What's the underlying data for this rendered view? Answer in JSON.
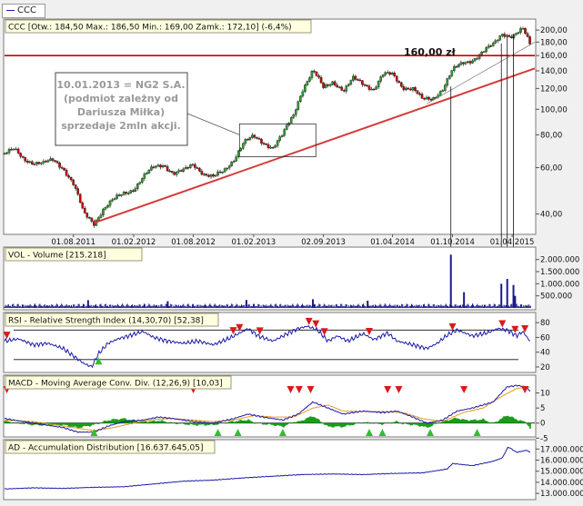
{
  "legend_tab": {
    "label": "CCC"
  },
  "colors": {
    "price_line": "#cc0000",
    "trend_line": "#d63a3a",
    "volume_bar": "#1a1a8c",
    "indicator_line": "#1a1aa6",
    "macd_signal": "#e39a25",
    "macd_hist": "#1a9c1a",
    "buy_marker": "#2fbf2f",
    "sell_marker": "#d91a1a",
    "panel_title_bg": "#ffffe0",
    "chart_bg": "#ffffff"
  },
  "chart_data": [
    {
      "type": "candlestick",
      "title": "CCC [Otw.: 184,50  Max.: 186,50  Min.: 169,00  Zamk.: 172,10] (-6,4%)",
      "scale": "log",
      "ylim": [
        34,
        215
      ],
      "yticks": [
        {
          "value": 200,
          "label": "200,00"
        },
        {
          "value": 180,
          "label": "180,00"
        },
        {
          "value": 160,
          "label": "160,00"
        },
        {
          "value": 140,
          "label": "140,00"
        },
        {
          "value": 120,
          "label": "120,00"
        },
        {
          "value": 100,
          "label": "100,00"
        },
        {
          "value": 80,
          "label": "80,00"
        },
        {
          "value": 60,
          "label": "60,00"
        },
        {
          "value": 40,
          "label": "40,00"
        }
      ],
      "xticks": [
        "01.08.2011",
        "01.02.2012",
        "01.08.2012",
        "01.02.2013",
        "02.09.2013",
        "01.04.2014",
        "01.10.2014",
        "01.04.2015"
      ],
      "xtick_dates": [
        "2011-08-01",
        "2012-02-01",
        "2012-08-01",
        "2013-02-01",
        "2013-09-02",
        "2014-04-01",
        "2014-10-01",
        "2015-04-01"
      ],
      "close_series": [
        [
          "2011-01-03",
          68
        ],
        [
          "2011-02-01",
          70
        ],
        [
          "2011-03-01",
          65
        ],
        [
          "2011-04-01",
          63
        ],
        [
          "2011-05-02",
          62
        ],
        [
          "2011-06-01",
          64
        ],
        [
          "2011-07-01",
          60
        ],
        [
          "2011-08-01",
          52
        ],
        [
          "2011-09-01",
          40
        ],
        [
          "2011-10-03",
          37
        ],
        [
          "2011-11-01",
          42
        ],
        [
          "2011-12-01",
          45
        ],
        [
          "2012-01-02",
          48
        ],
        [
          "2012-02-01",
          50
        ],
        [
          "2012-03-01",
          55
        ],
        [
          "2012-04-02",
          60
        ],
        [
          "2012-05-02",
          62
        ],
        [
          "2012-06-01",
          57
        ],
        [
          "2012-07-02",
          58
        ],
        [
          "2012-08-01",
          62
        ],
        [
          "2012-09-03",
          57
        ],
        [
          "2012-10-01",
          55
        ],
        [
          "2012-11-02",
          58
        ],
        [
          "2012-12-03",
          65
        ],
        [
          "2013-01-02",
          75
        ],
        [
          "2013-02-01",
          78
        ],
        [
          "2013-03-01",
          75
        ],
        [
          "2013-04-01",
          72
        ],
        [
          "2013-05-02",
          80
        ],
        [
          "2013-06-03",
          95
        ],
        [
          "2013-07-01",
          120
        ],
        [
          "2013-08-01",
          140
        ],
        [
          "2013-09-02",
          120
        ],
        [
          "2013-10-01",
          128
        ],
        [
          "2013-11-04",
          118
        ],
        [
          "2013-12-02",
          130
        ],
        [
          "2014-01-02",
          125
        ],
        [
          "2014-02-03",
          120
        ],
        [
          "2014-03-03",
          135
        ],
        [
          "2014-04-01",
          135
        ],
        [
          "2014-05-02",
          122
        ],
        [
          "2014-06-02",
          120
        ],
        [
          "2014-07-01",
          108
        ],
        [
          "2014-08-01",
          110
        ],
        [
          "2014-09-01",
          120
        ],
        [
          "2014-10-01",
          140
        ],
        [
          "2014-11-03",
          150
        ],
        [
          "2014-12-01",
          155
        ],
        [
          "2015-01-02",
          165
        ],
        [
          "2015-02-02",
          175
        ],
        [
          "2015-03-02",
          195
        ],
        [
          "2015-04-01",
          190
        ],
        [
          "2015-05-04",
          200
        ],
        [
          "2015-05-29",
          172.1
        ]
      ],
      "annotations": {
        "level_label": "160,00 zł",
        "note": "10.01.2013 = NG2 S.A. (podmiot zależny od Dariusza Miłka) sprzedaje 2mln akcji."
      }
    },
    {
      "type": "bar",
      "title": "VOL - Volume [215.218]",
      "ylim": [
        0,
        2400000
      ],
      "yticks": [
        {
          "value": 2000000,
          "label": "2.000.000"
        },
        {
          "value": 1500000,
          "label": "1.500.000"
        },
        {
          "value": 1000000,
          "label": "1.000.000"
        },
        {
          "value": 500000,
          "label": "500.000"
        }
      ],
      "baseline": 120000,
      "spikes": [
        [
          "2011-09-15",
          320000
        ],
        [
          "2012-05-15",
          280000
        ],
        [
          "2013-01-10",
          330000
        ],
        [
          "2013-08-01",
          360000
        ],
        [
          "2014-01-15",
          300000
        ],
        [
          "2014-09-26",
          2200000
        ],
        [
          "2014-11-05",
          650000
        ],
        [
          "2015-02-27",
          1000000
        ],
        [
          "2015-03-17",
          1200000
        ],
        [
          "2015-04-05",
          950000
        ],
        [
          "2015-04-10",
          500000
        ]
      ]
    },
    {
      "type": "line",
      "title": "RSI - Relative Strength Index (14,30,70) [52,38]",
      "ylim": [
        15,
        90
      ],
      "yticks": [
        {
          "value": 80,
          "label": "80"
        },
        {
          "value": 60,
          "label": "60"
        },
        {
          "value": 40,
          "label": "40"
        },
        {
          "value": 20,
          "label": "20"
        }
      ],
      "levels": [
        70,
        30
      ],
      "points": [
        [
          "2011-01-03",
          55
        ],
        [
          "2011-02-15",
          58
        ],
        [
          "2011-04-01",
          50
        ],
        [
          "2011-05-16",
          52
        ],
        [
          "2011-07-01",
          45
        ],
        [
          "2011-08-01",
          35
        ],
        [
          "2011-09-01",
          25
        ],
        [
          "2011-09-26",
          20
        ],
        [
          "2011-10-17",
          38
        ],
        [
          "2011-11-15",
          52
        ],
        [
          "2011-12-15",
          58
        ],
        [
          "2012-01-16",
          62
        ],
        [
          "2012-03-01",
          68
        ],
        [
          "2012-04-02",
          60
        ],
        [
          "2012-05-15",
          55
        ],
        [
          "2012-07-02",
          52
        ],
        [
          "2012-08-15",
          55
        ],
        [
          "2012-10-01",
          50
        ],
        [
          "2012-11-15",
          58
        ],
        [
          "2012-12-17",
          65
        ],
        [
          "2013-01-15",
          72
        ],
        [
          "2013-02-15",
          62
        ],
        [
          "2013-04-01",
          55
        ],
        [
          "2013-05-15",
          65
        ],
        [
          "2013-06-17",
          72
        ],
        [
          "2013-07-15",
          75
        ],
        [
          "2013-08-15",
          70
        ],
        [
          "2013-09-16",
          55
        ],
        [
          "2013-10-15",
          62
        ],
        [
          "2013-11-15",
          55
        ],
        [
          "2014-01-02",
          65
        ],
        [
          "2014-02-03",
          57
        ],
        [
          "2014-03-17",
          66
        ],
        [
          "2014-04-15",
          55
        ],
        [
          "2014-06-02",
          50
        ],
        [
          "2014-07-15",
          45
        ],
        [
          "2014-08-15",
          52
        ],
        [
          "2014-09-15",
          63
        ],
        [
          "2014-10-15",
          70
        ],
        [
          "2014-12-01",
          62
        ],
        [
          "2015-01-15",
          66
        ],
        [
          "2015-02-16",
          72
        ],
        [
          "2015-03-16",
          70
        ],
        [
          "2015-04-15",
          62
        ],
        [
          "2015-05-04",
          68
        ],
        [
          "2015-05-29",
          52.38
        ]
      ],
      "sell_signals": [
        "2011-01-10",
        "2012-12-01",
        "2012-12-20",
        "2013-02-20",
        "2013-07-20",
        "2013-08-10",
        "2013-09-05",
        "2014-01-20",
        "2014-10-01",
        "2015-03-02",
        "2015-04-10",
        "2015-05-10"
      ],
      "buy_signals": [
        "2011-10-17"
      ]
    },
    {
      "type": "line",
      "title": "MACD - Moving Average Conv. Div. (12,26,9) [10,03]",
      "ylim": [
        -4,
        15
      ],
      "yticks": [
        {
          "value": 10,
          "label": "10"
        },
        {
          "value": 5,
          "label": "5"
        },
        {
          "value": 0,
          "label": "0"
        },
        {
          "value": -5,
          "label": "-5"
        }
      ],
      "series": [
        {
          "name": "MACD",
          "points": [
            [
              "2011-01-03",
              1.5
            ],
            [
              "2011-03-01",
              0.5
            ],
            [
              "2011-05-02",
              -0.5
            ],
            [
              "2011-07-01",
              -1.5
            ],
            [
              "2011-08-15",
              -3
            ],
            [
              "2011-10-03",
              -3
            ],
            [
              "2011-11-15",
              -1
            ],
            [
              "2012-01-02",
              0.5
            ],
            [
              "2012-03-01",
              1
            ],
            [
              "2012-04-16",
              2
            ],
            [
              "2012-06-01",
              1.5
            ],
            [
              "2012-08-01",
              0.5
            ],
            [
              "2012-10-01",
              0
            ],
            [
              "2012-12-03",
              1.5
            ],
            [
              "2013-01-15",
              3
            ],
            [
              "2013-03-01",
              2
            ],
            [
              "2013-05-02",
              1
            ],
            [
              "2013-06-17",
              3
            ],
            [
              "2013-08-01",
              7
            ],
            [
              "2013-09-16",
              5
            ],
            [
              "2013-11-01",
              3
            ],
            [
              "2014-01-02",
              4
            ],
            [
              "2014-03-03",
              3.5
            ],
            [
              "2014-04-15",
              4
            ],
            [
              "2014-06-02",
              2
            ],
            [
              "2014-07-15",
              0
            ],
            [
              "2014-09-01",
              1
            ],
            [
              "2014-10-15",
              4
            ],
            [
              "2014-12-01",
              5
            ],
            [
              "2015-02-02",
              7
            ],
            [
              "2015-03-16",
              12
            ],
            [
              "2015-04-15",
              12.5
            ],
            [
              "2015-05-15",
              12
            ],
            [
              "2015-05-29",
              10.03
            ]
          ]
        },
        {
          "name": "Signal",
          "points": [
            [
              "2011-01-03",
              1
            ],
            [
              "2011-04-01",
              0.5
            ],
            [
              "2011-06-01",
              -0.5
            ],
            [
              "2011-08-01",
              -1.5
            ],
            [
              "2011-10-03",
              -2.5
            ],
            [
              "2011-12-01",
              -1.5
            ],
            [
              "2012-02-01",
              0
            ],
            [
              "2012-04-02",
              1.2
            ],
            [
              "2012-06-01",
              1.5
            ],
            [
              "2012-08-01",
              1
            ],
            [
              "2012-10-01",
              0.5
            ],
            [
              "2012-12-03",
              1
            ],
            [
              "2013-02-01",
              2.5
            ],
            [
              "2013-04-01",
              2
            ],
            [
              "2013-06-03",
              2
            ],
            [
              "2013-08-01",
              5
            ],
            [
              "2013-09-16",
              6
            ],
            [
              "2013-11-01",
              4
            ],
            [
              "2014-01-02",
              3.8
            ],
            [
              "2014-03-03",
              3.8
            ],
            [
              "2014-05-02",
              3.5
            ],
            [
              "2014-07-01",
              1.5
            ],
            [
              "2014-09-01",
              0.5
            ],
            [
              "2014-11-03",
              3.5
            ],
            [
              "2015-01-02",
              5
            ],
            [
              "2015-03-02",
              9
            ],
            [
              "2015-04-15",
              11.5
            ],
            [
              "2015-05-29",
              12
            ]
          ]
        }
      ],
      "sell_signals": [
        "2011-01-10",
        "2012-08-01",
        "2013-05-25",
        "2013-06-20",
        "2013-07-25",
        "2014-03-17",
        "2014-04-20",
        "2014-11-05",
        "2015-05-10"
      ],
      "buy_signals": [
        "2011-10-03",
        "2012-10-15",
        "2012-12-15",
        "2013-05-01",
        "2014-01-20",
        "2014-03-01",
        "2014-07-25",
        "2014-12-15"
      ]
    },
    {
      "type": "line",
      "title": "AD - Accumulation Distribution [16.637.645,05]",
      "ylim": [
        12600000,
        17600000
      ],
      "yticks": [
        {
          "value": 17000000,
          "label": "17.000.000"
        },
        {
          "value": 16000000,
          "label": "16.000.000"
        },
        {
          "value": 15000000,
          "label": "15.000.000"
        },
        {
          "value": 14000000,
          "label": "14.000.000"
        },
        {
          "value": 13000000,
          "label": "13.000.000"
        }
      ],
      "points": [
        [
          "2011-01-03",
          13400000
        ],
        [
          "2011-04-01",
          13500000
        ],
        [
          "2011-07-01",
          13450000
        ],
        [
          "2011-10-03",
          13550000
        ],
        [
          "2012-01-02",
          13600000
        ],
        [
          "2012-04-02",
          13850000
        ],
        [
          "2012-07-02",
          14100000
        ],
        [
          "2012-10-01",
          14200000
        ],
        [
          "2013-01-02",
          14400000
        ],
        [
          "2013-04-01",
          14550000
        ],
        [
          "2013-07-01",
          14700000
        ],
        [
          "2013-10-01",
          14750000
        ],
        [
          "2014-01-02",
          14700000
        ],
        [
          "2014-04-01",
          14800000
        ],
        [
          "2014-07-01",
          14850000
        ],
        [
          "2014-09-15",
          15200000
        ],
        [
          "2014-10-01",
          15700000
        ],
        [
          "2014-12-01",
          15500000
        ],
        [
          "2015-02-02",
          15900000
        ],
        [
          "2015-03-02",
          16200000
        ],
        [
          "2015-03-20",
          17200000
        ],
        [
          "2015-04-15",
          16700000
        ],
        [
          "2015-05-15",
          16900000
        ],
        [
          "2015-05-29",
          16637645
        ]
      ]
    }
  ]
}
